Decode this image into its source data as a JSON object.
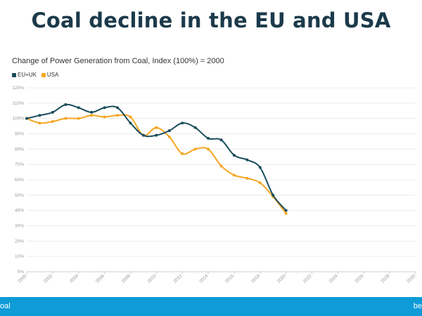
{
  "header": {
    "title": "Coal decline in the EU and USA"
  },
  "footer": {
    "left_text": "oal",
    "right_text": "be"
  },
  "chart_data": {
    "type": "line",
    "title": "Change of Power Generation from Coal, Index (100%) = 2000",
    "xlabel": "",
    "ylabel": "",
    "x": [
      2000,
      2001,
      2002,
      2003,
      2004,
      2005,
      2006,
      2007,
      2008,
      2009,
      2010,
      2011,
      2012,
      2013,
      2014,
      2015,
      2016,
      2017,
      2018,
      2019,
      2020
    ],
    "xlim": [
      2000,
      2030
    ],
    "xticks": [
      2000,
      2002,
      2004,
      2006,
      2008,
      2010,
      2012,
      2014,
      2016,
      2018,
      2020,
      2022,
      2024,
      2026,
      2028,
      2030
    ],
    "ylim": [
      0,
      120
    ],
    "yticks": [
      0,
      10,
      20,
      30,
      40,
      50,
      60,
      70,
      80,
      90,
      100,
      110,
      120
    ],
    "ytick_suffix": "%",
    "grid": true,
    "legend_position": "top-left",
    "series": [
      {
        "name": "EU+UK",
        "color": "#1a4d5c",
        "values": [
          100,
          102,
          104,
          109,
          107,
          104,
          107,
          107,
          97,
          89,
          89,
          92,
          97,
          94,
          87,
          86,
          76,
          73,
          68,
          50,
          40
        ]
      },
      {
        "name": "USA",
        "color": "#f5a623",
        "values": [
          100,
          97,
          98,
          100,
          100,
          102,
          101,
          102,
          101,
          89,
          94,
          88,
          77,
          80,
          80,
          69,
          63,
          61,
          58,
          49,
          38
        ]
      }
    ]
  }
}
